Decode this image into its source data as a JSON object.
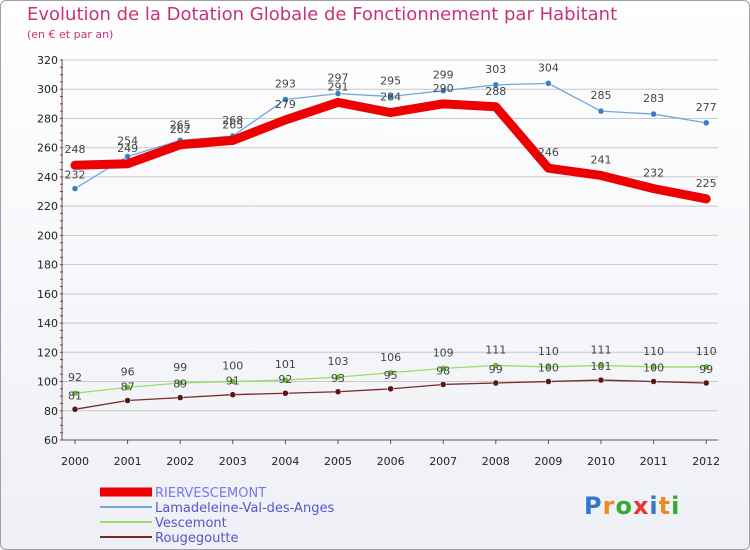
{
  "chart_data": {
    "type": "line",
    "title": "Evolution de la Dotation Globale de Fonctionnement par Habitant",
    "subtitle": "(en € et par an)",
    "xlabel": "",
    "ylabel": "",
    "ylim": [
      60,
      320
    ],
    "yticks": [
      60,
      80,
      100,
      120,
      140,
      160,
      180,
      200,
      220,
      240,
      260,
      280,
      300,
      320
    ],
    "categories": [
      "2000",
      "2001",
      "2002",
      "2003",
      "2004",
      "2005",
      "2006",
      "2007",
      "2008",
      "2009",
      "2010",
      "2011",
      "2012"
    ],
    "series": [
      {
        "name": "RIERVESCEMONT",
        "color": "#ee0000",
        "values": [
          248,
          249,
          262,
          265,
          279,
          291,
          284,
          290,
          288,
          246,
          241,
          232,
          225
        ]
      },
      {
        "name": "Lamadeleine-Val-des-Anges",
        "color": "#6fa8dc",
        "values": [
          232,
          254,
          265,
          268,
          293,
          297,
          295,
          299,
          303,
          304,
          285,
          283,
          277
        ]
      },
      {
        "name": "Vescemont",
        "color": "#99dd66",
        "values": [
          92,
          96,
          99,
          100,
          101,
          103,
          106,
          109,
          111,
          110,
          111,
          110,
          110
        ]
      },
      {
        "name": "Rougegoutte",
        "color": "#7b2a2a",
        "values": [
          81,
          87,
          89,
          91,
          92,
          93,
          95,
          98,
          99,
          100,
          101,
          100,
          99
        ]
      }
    ]
  },
  "brand": {
    "letters": [
      "P",
      "r",
      "o",
      "x",
      "i",
      "t",
      "i"
    ]
  }
}
